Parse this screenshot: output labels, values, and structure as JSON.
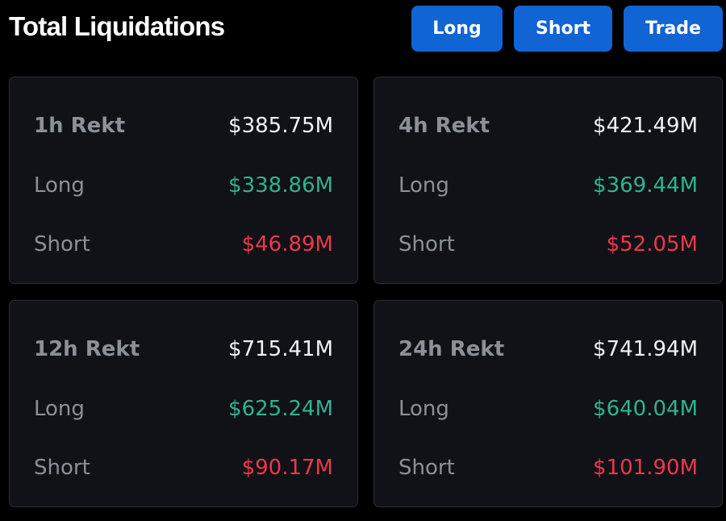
{
  "header": {
    "title": "Total Liquidations",
    "buttons": {
      "long": "Long",
      "short": "Short",
      "trade": "Trade"
    }
  },
  "colors": {
    "background": "#000000",
    "card": "#101217",
    "button": "#1164d3",
    "long": "#2fb391",
    "short": "#f0364c"
  },
  "cards": [
    {
      "label": "1h Rekt",
      "total": "$385.75M",
      "long_label": "Long",
      "long": "$338.86M",
      "short_label": "Short",
      "short": "$46.89M"
    },
    {
      "label": "4h Rekt",
      "total": "$421.49M",
      "long_label": "Long",
      "long": "$369.44M",
      "short_label": "Short",
      "short": "$52.05M"
    },
    {
      "label": "12h Rekt",
      "total": "$715.41M",
      "long_label": "Long",
      "long": "$625.24M",
      "short_label": "Short",
      "short": "$90.17M"
    },
    {
      "label": "24h Rekt",
      "total": "$741.94M",
      "long_label": "Long",
      "long": "$640.04M",
      "short_label": "Short",
      "short": "$101.90M"
    }
  ]
}
